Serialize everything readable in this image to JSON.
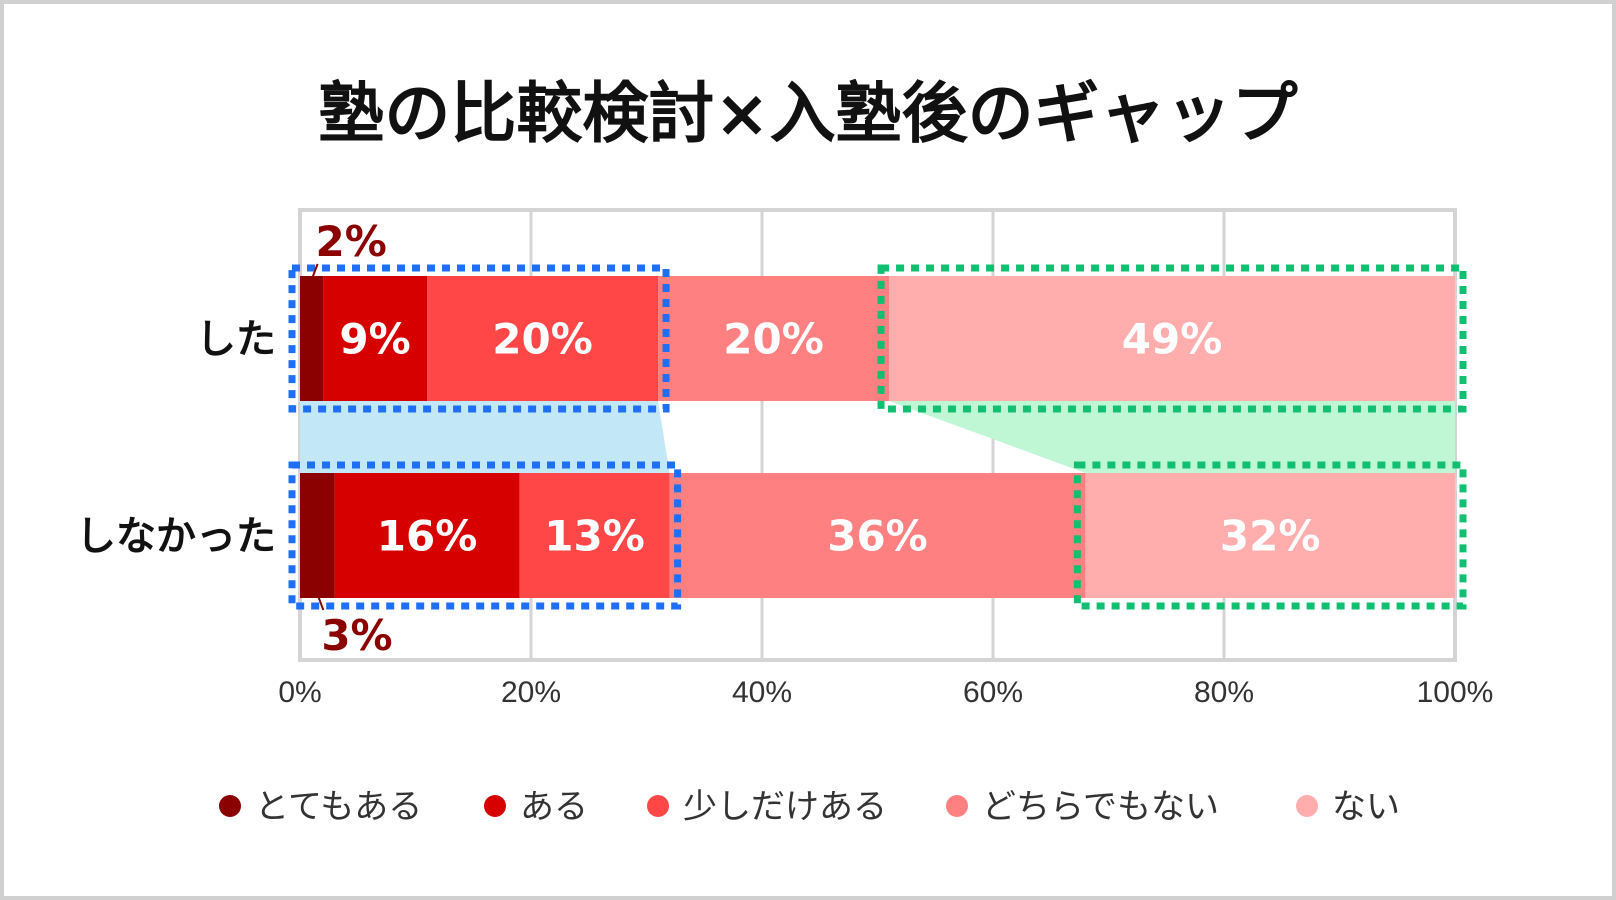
{
  "chart_data": {
    "type": "bar",
    "orientation": "horizontal",
    "stacked": true,
    "title": "塾の比較検討×入塾後のギャップ",
    "categories": [
      "した",
      "しなかった"
    ],
    "series": [
      {
        "name": "とてもある",
        "values": [
          2,
          3
        ],
        "color": "#8B0000"
      },
      {
        "name": "ある",
        "values": [
          9,
          16
        ],
        "color": "#D70000"
      },
      {
        "name": "少しだけある",
        "values": [
          20,
          13
        ],
        "color": "#FF4747"
      },
      {
        "name": "どちらでもない",
        "values": [
          20,
          36
        ],
        "color": "#FF8080"
      },
      {
        "name": "ない",
        "values": [
          49,
          32
        ],
        "color": "#FFADAD"
      }
    ],
    "data_labels": [
      [
        "2%",
        "9%",
        "20%",
        "20%",
        "49%"
      ],
      [
        "3%",
        "16%",
        "13%",
        "36%",
        "32%"
      ]
    ],
    "xlim": [
      0,
      100
    ],
    "x_ticks": [
      "0%",
      "20%",
      "40%",
      "60%",
      "80%",
      "100%"
    ],
    "grid": true,
    "legend_position": "bottom",
    "callout_color": "#8B0000",
    "highlights": [
      {
        "color": "#1E6FF5",
        "fill": "#C2E8F8",
        "ranges": [
          [
            0,
            31
          ],
          [
            0,
            32
          ]
        ]
      },
      {
        "color": "#10C070",
        "fill": "#BFF7D5",
        "ranges": [
          [
            51,
            100
          ],
          [
            68,
            100
          ]
        ]
      }
    ]
  }
}
